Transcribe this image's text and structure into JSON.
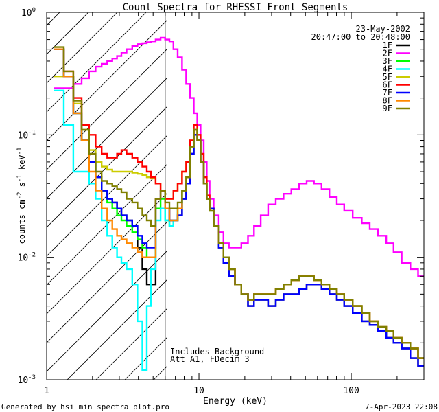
{
  "chart_data": {
    "type": "line",
    "title": "Count Spectra for RHESSI Front Segments",
    "xlabel": "Energy (keV)",
    "ylabel": "counts cm",
    "ylabel_unit_parts": [
      "-2",
      " s",
      "-1",
      " keV",
      "-1"
    ],
    "xscale": "log",
    "yscale": "log",
    "xlim": [
      1,
      300
    ],
    "ylim": [
      0.001,
      1
    ],
    "x_ticks": [
      {
        "value": 1,
        "label": "1"
      },
      {
        "value": 10,
        "label": "10"
      },
      {
        "value": 100,
        "label": "100"
      }
    ],
    "y_ticks": [
      {
        "value": 0.001,
        "label_base": "10",
        "label_exp": "-3"
      },
      {
        "value": 0.01,
        "label_base": "10",
        "label_exp": "-2"
      },
      {
        "value": 0.1,
        "label_base": "10",
        "label_exp": "-1"
      },
      {
        "value": 1,
        "label_base": "10",
        "label_exp": "0"
      }
    ],
    "legend_placement": "top-right",
    "date_label": "23-May-2002",
    "time_label": "20:47:00 to 20:48:00",
    "hatch_region": {
      "x_from": 1,
      "x_to": 6
    },
    "annotation_lines": [
      "Includes Background",
      "Att A1, FDecim 3"
    ],
    "x": [
      1.2,
      1.4,
      1.6,
      1.8,
      2.0,
      2.2,
      2.4,
      2.6,
      2.8,
      3.0,
      3.2,
      3.5,
      3.8,
      4.1,
      4.4,
      4.7,
      5.0,
      5.4,
      5.8,
      6.2,
      6.6,
      7.0,
      7.5,
      8.0,
      8.5,
      9.0,
      9.5,
      10,
      10.5,
      11,
      11.5,
      12,
      13,
      14,
      15,
      16.5,
      18,
      20,
      22,
      24,
      27,
      30,
      34,
      38,
      43,
      48,
      54,
      60,
      68,
      76,
      85,
      95,
      110,
      125,
      140,
      160,
      180,
      200,
      230,
      260,
      290
    ],
    "series": [
      {
        "name": "1F",
        "color": "#000000",
        "values": [
          0.5,
          0.3,
          0.15,
          0.09,
          0.06,
          0.045,
          0.035,
          0.03,
          0.028,
          0.025,
          0.022,
          0.02,
          0.018,
          0.012,
          0.008,
          0.006,
          0.006,
          0.03,
          0.035,
          0.025,
          0.02,
          0.02,
          0.022,
          0.03,
          0.04,
          0.07,
          0.1,
          0.09,
          0.06,
          0.04,
          0.03,
          0.025,
          0.018,
          0.012,
          0.009,
          0.007,
          0.006,
          0.005,
          0.004,
          0.0045,
          0.0045,
          0.004,
          0.0045,
          0.005,
          0.005,
          0.0055,
          0.006,
          0.006,
          0.0055,
          0.005,
          0.0045,
          0.004,
          0.0035,
          0.003,
          0.0028,
          0.0025,
          0.0022,
          0.002,
          0.0018,
          0.0015,
          0.0013
        ]
      },
      {
        "name": "2F",
        "color": "#ff00ff",
        "values": [
          0.24,
          0.24,
          0.26,
          0.29,
          0.33,
          0.36,
          0.38,
          0.4,
          0.42,
          0.44,
          0.47,
          0.5,
          0.53,
          0.55,
          0.56,
          0.57,
          0.58,
          0.6,
          0.62,
          0.6,
          0.58,
          0.5,
          0.43,
          0.34,
          0.26,
          0.2,
          0.15,
          0.12,
          0.09,
          0.06,
          0.042,
          0.03,
          0.022,
          0.016,
          0.013,
          0.012,
          0.012,
          0.013,
          0.015,
          0.018,
          0.022,
          0.027,
          0.03,
          0.033,
          0.036,
          0.04,
          0.042,
          0.04,
          0.036,
          0.031,
          0.027,
          0.024,
          0.021,
          0.019,
          0.017,
          0.015,
          0.013,
          0.011,
          0.009,
          0.008,
          0.007
        ]
      },
      {
        "name": "3F",
        "color": "#00ff00",
        "values": [
          0.5,
          0.3,
          0.15,
          0.09,
          0.06,
          0.045,
          0.035,
          0.028,
          0.025,
          0.022,
          0.02,
          0.018,
          0.016,
          0.014,
          0.012,
          0.01,
          0.01,
          0.025,
          0.03,
          0.02,
          0.018,
          0.02,
          0.025,
          0.035,
          0.045,
          0.08,
          0.11,
          0.09,
          0.06,
          0.04,
          0.03,
          0.024,
          0.018,
          0.013,
          0.01,
          0.008,
          0.006,
          0.005,
          0.0045,
          0.005,
          0.005,
          0.005,
          0.0055,
          0.006,
          0.0065,
          0.007,
          0.007,
          0.0065,
          0.006,
          0.0055,
          0.005,
          0.0045,
          0.004,
          0.0035,
          0.003,
          0.0027,
          0.0025,
          0.0022,
          0.002,
          0.0018,
          0.0015
        ]
      },
      {
        "name": "4F",
        "color": "#00ffff",
        "values": [
          0.23,
          0.12,
          0.05,
          0.05,
          0.04,
          0.03,
          0.02,
          0.015,
          0.012,
          0.01,
          0.009,
          0.008,
          0.006,
          0.003,
          0.0012,
          0.004,
          0.008,
          0.02,
          0.025,
          0.02,
          0.018,
          0.02,
          0.025,
          0.035,
          0.045,
          0.08,
          0.11,
          0.09,
          0.06,
          0.04,
          0.03,
          0.024,
          0.018,
          0.013,
          0.01,
          0.008,
          0.006,
          0.005,
          0.0045,
          0.005,
          0.005,
          0.005,
          0.0055,
          0.006,
          0.0065,
          0.007,
          0.007,
          0.0065,
          0.006,
          0.0055,
          0.005,
          0.0045,
          0.004,
          0.0035,
          0.003,
          0.0027,
          0.0025,
          0.0022,
          0.002,
          0.0018,
          0.0015
        ]
      },
      {
        "name": "5F",
        "color": "#cccc00",
        "values": [
          0.3,
          0.3,
          0.18,
          0.11,
          0.075,
          0.06,
          0.055,
          0.052,
          0.05,
          0.05,
          0.05,
          0.05,
          0.049,
          0.048,
          0.047,
          0.045,
          0.044,
          0.04,
          0.035,
          0.03,
          0.03,
          0.035,
          0.04,
          0.05,
          0.06,
          0.09,
          0.11,
          0.09,
          0.06,
          0.04,
          0.03,
          0.024,
          0.018,
          0.013,
          0.01,
          0.008,
          0.006,
          0.005,
          0.0045,
          0.005,
          0.005,
          0.005,
          0.0055,
          0.006,
          0.0065,
          0.007,
          0.007,
          0.0065,
          0.006,
          0.0055,
          0.005,
          0.0045,
          0.004,
          0.0035,
          0.003,
          0.0027,
          0.0025,
          0.0022,
          0.002,
          0.0018,
          0.0015
        ]
      },
      {
        "name": "6F",
        "color": "#ff0000",
        "values": [
          0.5,
          0.33,
          0.2,
          0.12,
          0.1,
          0.08,
          0.07,
          0.065,
          0.065,
          0.07,
          0.075,
          0.07,
          0.065,
          0.06,
          0.055,
          0.05,
          0.045,
          0.04,
          0.035,
          0.03,
          0.03,
          0.035,
          0.04,
          0.05,
          0.06,
          0.09,
          0.12,
          0.1,
          0.07,
          0.045,
          0.032,
          0.025,
          0.018,
          0.013,
          0.01,
          0.008,
          0.006,
          0.005,
          0.0045,
          0.005,
          0.005,
          0.005,
          0.0055,
          0.006,
          0.0065,
          0.007,
          0.007,
          0.0065,
          0.006,
          0.0055,
          0.005,
          0.0045,
          0.004,
          0.0035,
          0.003,
          0.0027,
          0.0025,
          0.0022,
          0.002,
          0.0018,
          0.0015
        ]
      },
      {
        "name": "7F",
        "color": "#0000ff",
        "values": [
          0.5,
          0.3,
          0.15,
          0.09,
          0.06,
          0.045,
          0.035,
          0.03,
          0.028,
          0.025,
          0.022,
          0.02,
          0.018,
          0.015,
          0.013,
          0.012,
          0.012,
          0.03,
          0.035,
          0.025,
          0.02,
          0.02,
          0.022,
          0.03,
          0.04,
          0.07,
          0.1,
          0.09,
          0.06,
          0.04,
          0.03,
          0.025,
          0.018,
          0.012,
          0.009,
          0.007,
          0.006,
          0.005,
          0.004,
          0.0045,
          0.0045,
          0.004,
          0.0045,
          0.005,
          0.005,
          0.0055,
          0.006,
          0.006,
          0.0055,
          0.005,
          0.0045,
          0.004,
          0.0035,
          0.003,
          0.0028,
          0.0025,
          0.0022,
          0.002,
          0.0018,
          0.0015,
          0.0013
        ]
      },
      {
        "name": "8F",
        "color": "#ff8800",
        "values": [
          0.5,
          0.3,
          0.15,
          0.09,
          0.05,
          0.035,
          0.025,
          0.02,
          0.017,
          0.015,
          0.014,
          0.013,
          0.012,
          0.011,
          0.01,
          0.01,
          0.01,
          0.03,
          0.035,
          0.025,
          0.02,
          0.02,
          0.025,
          0.035,
          0.045,
          0.08,
          0.11,
          0.09,
          0.06,
          0.04,
          0.03,
          0.024,
          0.018,
          0.013,
          0.01,
          0.008,
          0.006,
          0.005,
          0.0045,
          0.005,
          0.005,
          0.005,
          0.0055,
          0.006,
          0.0065,
          0.007,
          0.007,
          0.0065,
          0.006,
          0.0055,
          0.005,
          0.0045,
          0.004,
          0.0035,
          0.003,
          0.0027,
          0.0025,
          0.0022,
          0.002,
          0.0018,
          0.0015
        ]
      },
      {
        "name": "9F",
        "color": "#808000",
        "values": [
          0.52,
          0.33,
          0.19,
          0.11,
          0.07,
          0.05,
          0.042,
          0.04,
          0.038,
          0.036,
          0.034,
          0.03,
          0.028,
          0.025,
          0.022,
          0.02,
          0.018,
          0.03,
          0.035,
          0.028,
          0.025,
          0.025,
          0.028,
          0.035,
          0.045,
          0.08,
          0.11,
          0.09,
          0.06,
          0.04,
          0.03,
          0.024,
          0.018,
          0.013,
          0.01,
          0.008,
          0.006,
          0.005,
          0.0045,
          0.005,
          0.005,
          0.005,
          0.0055,
          0.006,
          0.0065,
          0.007,
          0.007,
          0.0065,
          0.006,
          0.0055,
          0.005,
          0.0045,
          0.004,
          0.0035,
          0.003,
          0.0027,
          0.0025,
          0.0022,
          0.002,
          0.0018,
          0.0015
        ]
      }
    ]
  },
  "footer": {
    "left": "Generated by hsi_min_spectra_plot.pro",
    "right": "7-Apr-2023 22:08"
  }
}
